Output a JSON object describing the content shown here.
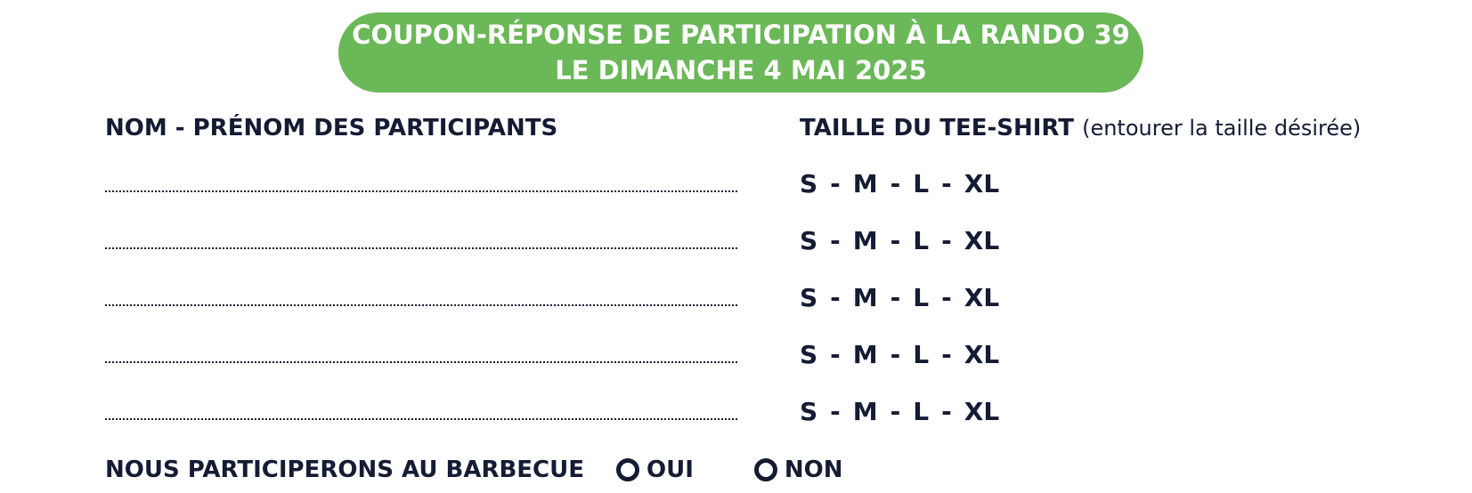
{
  "banner": {
    "line1": "COUPON-RÉPONSE DE PARTICIPATION À LA RANDO 39",
    "line2": "LE DIMANCHE 4 MAI 2025",
    "color": "#6ab857"
  },
  "columns": {
    "names_header": "NOM - PRÉNOM DES PARTICIPANTS",
    "tshirt_header": "TAILLE DU TEE-SHIRT",
    "tshirt_note": "(entourer la taille désirée)"
  },
  "sizes": {
    "s": "S",
    "m": "M",
    "l": "L",
    "xl": "XL",
    "separator": "-"
  },
  "participant_rows": 5,
  "barbecue": {
    "label": "NOUS PARTICIPERONS AU BARBECUE",
    "yes": "OUI",
    "no": "NON"
  },
  "text_color": "#141c34"
}
